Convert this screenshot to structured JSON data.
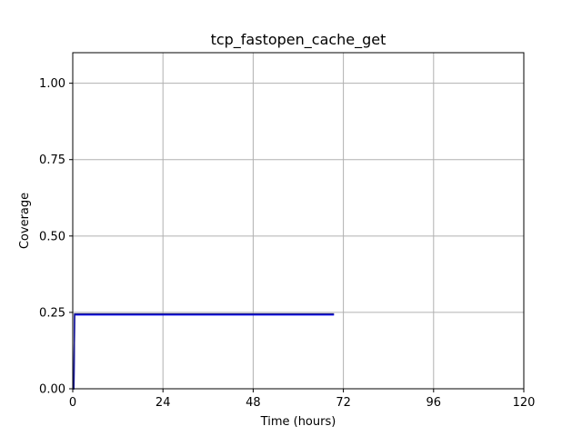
{
  "chart_data": {
    "type": "line",
    "title": "tcp_fastopen_cache_get",
    "xlabel": "Time (hours)",
    "ylabel": "Coverage",
    "xlim": [
      0,
      120
    ],
    "ylim": [
      0,
      1.1
    ],
    "xticks": [
      0,
      24,
      48,
      72,
      96,
      120
    ],
    "xtick_labels": [
      "0",
      "24",
      "48",
      "72",
      "96",
      "120"
    ],
    "yticks": [
      0,
      0.25,
      0.5,
      0.75,
      1.0
    ],
    "ytick_labels": [
      "0.00",
      "0.25",
      "0.50",
      "0.75",
      "1.00"
    ],
    "grid": true,
    "series": [
      {
        "color": "#0000ff",
        "x": [
          0,
          0.3,
          0.5,
          69.5
        ],
        "y": [
          0,
          0,
          0.242,
          0.242
        ]
      },
      {
        "color": "#1a1a8c",
        "x": [
          0,
          0.3,
          0.5,
          69.5
        ],
        "y": [
          0,
          0,
          0.245,
          0.245
        ]
      }
    ]
  }
}
